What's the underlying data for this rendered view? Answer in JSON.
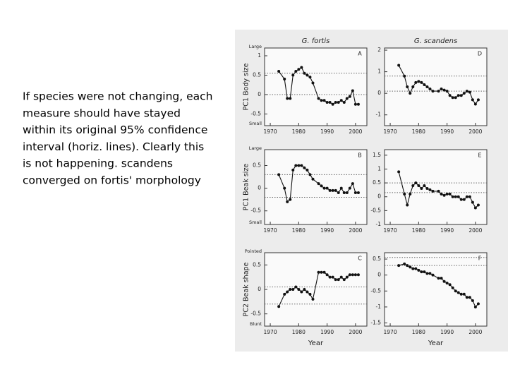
{
  "slide_text": [
    "If species were not changing, each",
    "measure should have stayed",
    "within its original 95% confidence",
    "interval (horiz. lines).  Clearly this",
    "is not happening. scandens",
    "converged on fortis' morphology"
  ],
  "chart_data": [
    {
      "type": "line",
      "title": "G. fortis",
      "panel_label": "A",
      "ylabel": "PC1 Body size",
      "top_label": "Large",
      "bottom_label": "Small",
      "x": [
        1973,
        1975,
        1976,
        1977,
        1978,
        1979,
        1980,
        1981,
        1982,
        1983,
        1984,
        1985,
        1987,
        1988,
        1989,
        1990,
        1991,
        1992,
        1993,
        1994,
        1995,
        1996,
        1997,
        1998,
        1999,
        2000,
        2001
      ],
      "values": [
        0.6,
        0.4,
        -0.1,
        -0.1,
        0.5,
        0.6,
        0.65,
        0.7,
        0.55,
        0.5,
        0.45,
        0.3,
        -0.1,
        -0.15,
        -0.15,
        -0.2,
        -0.2,
        -0.25,
        -0.2,
        -0.2,
        -0.15,
        -0.2,
        -0.1,
        -0.05,
        0.1,
        -0.25,
        -0.25
      ],
      "ref_lines": [
        0.55,
        0.0
      ],
      "xlim": [
        1968,
        2004
      ],
      "xticks": [
        1970,
        1980,
        1990,
        2000
      ],
      "ylim": [
        -0.8,
        1.2
      ],
      "yticks": [
        1,
        0.5,
        0,
        -0.5
      ]
    },
    {
      "type": "line",
      "panel_label": "B",
      "ylabel": "PC1 Beak size",
      "top_label": "Large",
      "bottom_label": "Small",
      "x": [
        1973,
        1975,
        1976,
        1977,
        1978,
        1979,
        1980,
        1981,
        1982,
        1983,
        1984,
        1985,
        1987,
        1988,
        1989,
        1990,
        1991,
        1992,
        1993,
        1994,
        1995,
        1996,
        1997,
        1998,
        1999,
        2000,
        2001
      ],
      "values": [
        0.3,
        0,
        -0.3,
        -0.25,
        0.4,
        0.5,
        0.5,
        0.5,
        0.45,
        0.4,
        0.3,
        0.2,
        0.1,
        0.05,
        0,
        0,
        -0.05,
        -0.05,
        -0.05,
        -0.1,
        0,
        -0.1,
        -0.1,
        0,
        0.1,
        -0.1,
        -0.1
      ],
      "ref_lines": [
        0.3,
        -0.2
      ],
      "xlim": [
        1968,
        2004
      ],
      "xticks": [
        1970,
        1980,
        1990,
        2000
      ],
      "ylim": [
        -0.8,
        0.85
      ],
      "yticks": [
        0.5,
        0,
        -0.5
      ]
    },
    {
      "type": "line",
      "panel_label": "C",
      "ylabel": "PC2 Beak shape",
      "top_label": "Pointed",
      "bottom_label": "Blunt",
      "xlabel": "Year",
      "x": [
        1973,
        1975,
        1976,
        1977,
        1978,
        1979,
        1980,
        1981,
        1982,
        1983,
        1984,
        1985,
        1987,
        1988,
        1989,
        1990,
        1991,
        1992,
        1993,
        1994,
        1995,
        1996,
        1997,
        1998,
        1999,
        2000,
        2001
      ],
      "values": [
        -0.35,
        -0.1,
        -0.05,
        0,
        0,
        0.05,
        0,
        -0.05,
        0,
        -0.05,
        -0.1,
        -0.2,
        0.35,
        0.35,
        0.35,
        0.3,
        0.25,
        0.25,
        0.2,
        0.2,
        0.25,
        0.2,
        0.25,
        0.3,
        0.3,
        0.3,
        0.3
      ],
      "ref_lines": [
        0.05,
        -0.3
      ],
      "xlim": [
        1968,
        2004
      ],
      "xticks": [
        1970,
        1980,
        1990,
        2000
      ],
      "ylim": [
        -0.75,
        0.75
      ],
      "yticks": [
        0.5,
        0,
        -0.5
      ]
    },
    {
      "type": "line",
      "title": "G. scandens",
      "panel_label": "D",
      "x": [
        1973,
        1975,
        1976,
        1977,
        1978,
        1979,
        1980,
        1981,
        1982,
        1983,
        1984,
        1985,
        1987,
        1988,
        1989,
        1990,
        1991,
        1992,
        1993,
        1994,
        1995,
        1996,
        1997,
        1998,
        1999,
        2000,
        2001
      ],
      "values": [
        1.3,
        0.8,
        0.3,
        0,
        0.3,
        0.5,
        0.55,
        0.5,
        0.4,
        0.3,
        0.2,
        0.1,
        0.1,
        0.2,
        0.15,
        0.1,
        -0.1,
        -0.2,
        -0.2,
        -0.1,
        -0.1,
        0,
        0.1,
        0.05,
        -0.3,
        -0.5,
        -0.3
      ],
      "ref_lines": [
        0.8,
        0.1
      ],
      "xlim": [
        1968,
        2004
      ],
      "xticks": [
        1970,
        1980,
        1990,
        2000
      ],
      "ylim": [
        -1.5,
        2.1
      ],
      "yticks": [
        2,
        1,
        0,
        -1
      ]
    },
    {
      "type": "line",
      "panel_label": "E",
      "x": [
        1973,
        1975,
        1976,
        1977,
        1978,
        1979,
        1980,
        1981,
        1982,
        1983,
        1984,
        1985,
        1987,
        1988,
        1989,
        1990,
        1991,
        1992,
        1993,
        1994,
        1995,
        1996,
        1997,
        1998,
        1999,
        2000,
        2001
      ],
      "values": [
        0.9,
        0.1,
        -0.3,
        0.1,
        0.4,
        0.5,
        0.4,
        0.3,
        0.4,
        0.3,
        0.25,
        0.2,
        0.2,
        0.1,
        0.05,
        0.1,
        0.1,
        0,
        0,
        0,
        -0.1,
        -0.1,
        0,
        0,
        -0.2,
        -0.4,
        -0.3
      ],
      "ref_lines": [
        0.5,
        0.15
      ],
      "xlim": [
        1968,
        2004
      ],
      "xticks": [
        1970,
        1980,
        1990,
        2000
      ],
      "ylim": [
        -1,
        1.7
      ],
      "yticks": [
        1.5,
        1,
        0.5,
        0,
        -0.5,
        -1
      ]
    },
    {
      "type": "line",
      "panel_label": "F",
      "xlabel": "Year",
      "x": [
        1973,
        1975,
        1976,
        1977,
        1978,
        1979,
        1980,
        1981,
        1982,
        1983,
        1984,
        1985,
        1987,
        1988,
        1989,
        1990,
        1991,
        1992,
        1993,
        1994,
        1995,
        1996,
        1997,
        1998,
        1999,
        2000,
        2001
      ],
      "values": [
        0.3,
        0.35,
        0.3,
        0.25,
        0.2,
        0.2,
        0.15,
        0.1,
        0.1,
        0.05,
        0.05,
        0,
        -0.1,
        -0.1,
        -0.2,
        -0.25,
        -0.3,
        -0.4,
        -0.5,
        -0.55,
        -0.6,
        -0.6,
        -0.7,
        -0.7,
        -0.8,
        -1,
        -0.9
      ],
      "ref_lines": [
        0.55,
        0.3
      ],
      "xlim": [
        1968,
        2004
      ],
      "xticks": [
        1970,
        1980,
        1990,
        2000
      ],
      "ylim": [
        -1.6,
        0.7
      ],
      "yticks": [
        0.5,
        0,
        -0.5,
        -1,
        -1.5
      ]
    }
  ]
}
